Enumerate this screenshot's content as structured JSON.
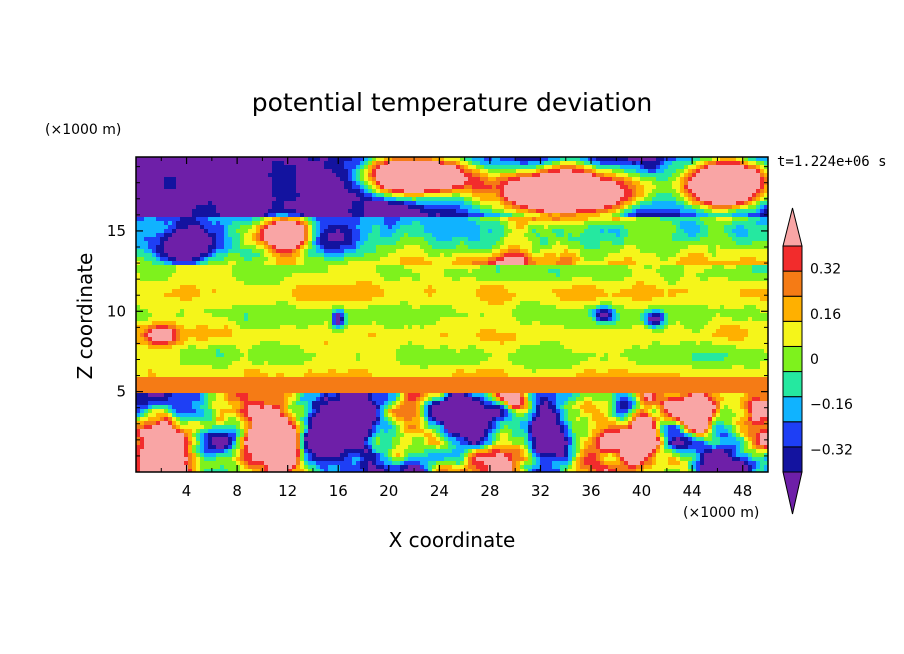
{
  "chart_data": {
    "type": "heatmap",
    "title": "potential temperature deviation",
    "xlabel": "X coordinate",
    "ylabel": "Z coordinate",
    "x_unit": "(×1000 m)",
    "y_unit": "(×1000 m)",
    "time_label": "t=1.224e+06 s",
    "xlim": [
      0,
      50
    ],
    "ylim": [
      0,
      19.6
    ],
    "x_ticks": [
      "4",
      "8",
      "12",
      "16",
      "20",
      "24",
      "28",
      "32",
      "36",
      "40",
      "44",
      "48"
    ],
    "y_ticks": [
      "5",
      "10",
      "15"
    ],
    "x_tick_values": [
      4,
      8,
      12,
      16,
      20,
      24,
      28,
      32,
      36,
      40,
      44,
      48
    ],
    "y_tick_values": [
      5,
      10,
      15
    ],
    "colorbar": {
      "levels": [
        -0.4,
        -0.32,
        -0.24,
        -0.16,
        -0.08,
        0,
        0.08,
        0.16,
        0.24,
        0.32,
        0.4
      ],
      "labels": [
        "0.32",
        "0.16",
        "0",
        "−0.16",
        "−0.32"
      ],
      "label_values": [
        0.32,
        0.16,
        0,
        -0.16,
        -0.32
      ],
      "colors": [
        "#6e1fa8",
        "#13139f",
        "#1e3ff5",
        "#10b3ff",
        "#25e8a0",
        "#7ef21d",
        "#f5f51a",
        "#ffb000",
        "#f57b15",
        "#f22c2c",
        "#f9a5a5"
      ]
    }
  }
}
